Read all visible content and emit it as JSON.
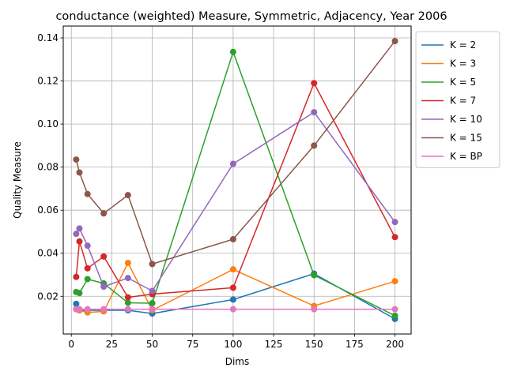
{
  "chart_data": {
    "type": "line",
    "title": "conductance (weighted) Measure, Symmetric, Adjacency, Year 2006",
    "xlabel": "Dims",
    "ylabel": "Quality Measure",
    "xlim": [
      -5,
      210
    ],
    "ylim": [
      0.0025,
      0.1455
    ],
    "xticks": [
      0,
      25,
      50,
      75,
      100,
      125,
      150,
      175,
      200
    ],
    "yticks": [
      0.02,
      0.04,
      0.06,
      0.08,
      0.1,
      0.12,
      0.14
    ],
    "ytick_labels": [
      "0.02",
      "0.04",
      "0.06",
      "0.08",
      "0.10",
      "0.12",
      "0.14"
    ],
    "grid": true,
    "legend_position": "outside-top-right",
    "series": [
      {
        "name": "K = 2",
        "color": "#1f77b4",
        "x": [
          3,
          5,
          10,
          20,
          35,
          50,
          100,
          150,
          200
        ],
        "y": [
          0.0165,
          0.0135,
          0.0135,
          0.0135,
          0.0135,
          0.012,
          0.0185,
          0.0305,
          0.0095
        ]
      },
      {
        "name": "K = 3",
        "color": "#ff7f0e",
        "x": [
          3,
          5,
          10,
          20,
          35,
          50,
          100,
          150,
          200
        ],
        "y": [
          0.014,
          0.0135,
          0.0125,
          0.013,
          0.0355,
          0.0135,
          0.0325,
          0.0155,
          0.027
        ]
      },
      {
        "name": "K = 5",
        "color": "#2ca02c",
        "x": [
          3,
          5,
          10,
          20,
          35,
          50,
          100,
          150,
          200
        ],
        "y": [
          0.022,
          0.0215,
          0.028,
          0.026,
          0.017,
          0.0168,
          0.1335,
          0.0298,
          0.011
        ]
      },
      {
        "name": "K = 7",
        "color": "#d62728",
        "x": [
          3,
          5,
          10,
          20,
          35,
          50,
          100,
          150,
          200
        ],
        "y": [
          0.029,
          0.0455,
          0.033,
          0.0385,
          0.0195,
          0.021,
          0.024,
          0.119,
          0.0475
        ]
      },
      {
        "name": "K = 10",
        "color": "#9467bd",
        "x": [
          3,
          5,
          10,
          20,
          35,
          50,
          100,
          150,
          200
        ],
        "y": [
          0.049,
          0.0515,
          0.0435,
          0.0245,
          0.0285,
          0.0225,
          0.0815,
          0.1055,
          0.0545
        ]
      },
      {
        "name": "K = 15",
        "color": "#8c564b",
        "x": [
          3,
          5,
          10,
          20,
          35,
          50,
          100,
          150,
          200
        ],
        "y": [
          0.0835,
          0.0775,
          0.0675,
          0.0585,
          0.067,
          0.035,
          0.0465,
          0.09,
          0.1385
        ]
      },
      {
        "name": "K = BP",
        "color": "#e377c2",
        "x": [
          3,
          5,
          10,
          20,
          35,
          50,
          100,
          150,
          200
        ],
        "y": [
          0.014,
          0.014,
          0.014,
          0.014,
          0.014,
          0.014,
          0.014,
          0.014,
          0.014
        ]
      }
    ]
  }
}
